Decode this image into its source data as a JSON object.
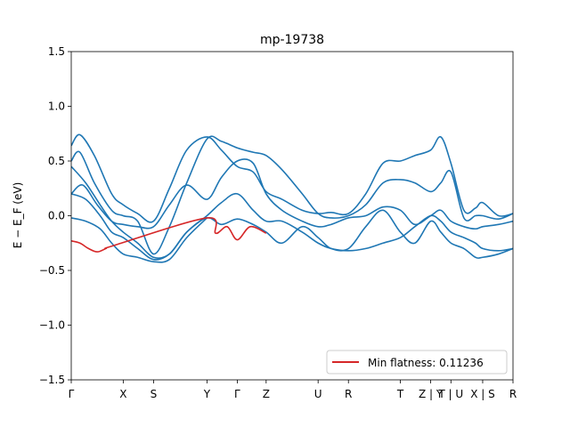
{
  "chart_data": {
    "type": "line",
    "title": "mp-19738",
    "ylabel": "E − E_F (eV)",
    "xlabel": "",
    "xlim": [
      0,
      15.3
    ],
    "ylim": [
      -1.5,
      1.5
    ],
    "yticks": [
      -1.5,
      -1.0,
      -0.5,
      0.0,
      0.5,
      1.0,
      1.5
    ],
    "ytick_labels": [
      "−1.5",
      "−1.0",
      "−0.5",
      "0.0",
      "0.5",
      "1.0",
      "1.5"
    ],
    "xticks": [
      {
        "x": 0.0,
        "label": "Γ"
      },
      {
        "x": 1.8,
        "label": "X"
      },
      {
        "x": 2.85,
        "label": "S"
      },
      {
        "x": 4.7,
        "label": "Y"
      },
      {
        "x": 5.75,
        "label": "Γ"
      },
      {
        "x": 6.75,
        "label": "Z"
      },
      {
        "x": 8.55,
        "label": "U"
      },
      {
        "x": 9.6,
        "label": "R"
      },
      {
        "x": 11.4,
        "label": "T"
      },
      {
        "x": 12.45,
        "label": "Z | Y"
      },
      {
        "x": 13.15,
        "label": "T | U"
      },
      {
        "x": 14.25,
        "label": "X | S"
      },
      {
        "x": 15.3,
        "label": "R"
      }
    ],
    "grid": false,
    "legend": {
      "location": "lower-right",
      "entries": [
        "Min flatness: 0.11236"
      ]
    },
    "series": [
      {
        "color": "#1f77b4",
        "x": [
          0,
          0.3,
          0.8,
          1.4,
          1.8,
          2.3,
          2.85,
          3.4,
          4.0,
          4.7,
          5.2,
          5.75,
          6.3,
          6.75,
          7.3,
          8.0,
          8.55,
          9.0,
          9.6,
          10.2,
          10.8,
          11.4,
          11.9,
          12.45,
          12.8,
          13.15,
          13.6,
          14.0,
          14.25,
          14.8,
          15.3
        ],
        "y": [
          0.64,
          0.74,
          0.55,
          0.2,
          0.1,
          0.02,
          -0.05,
          0.25,
          0.6,
          0.72,
          0.6,
          0.45,
          0.4,
          0.22,
          0.15,
          0.05,
          0.02,
          0.03,
          0.02,
          0.2,
          0.48,
          0.5,
          0.55,
          0.6,
          0.72,
          0.48,
          0.05,
          0.07,
          0.12,
          0.0,
          0.02
        ]
      },
      {
        "color": "#1f77b4",
        "x": [
          0,
          0.3,
          0.8,
          1.4,
          1.8,
          2.3,
          2.85,
          3.4,
          4.0,
          4.7,
          5.2,
          5.75,
          6.3,
          6.75,
          7.3,
          8.0,
          8.55,
          9.0,
          9.6,
          10.2,
          10.8,
          11.4,
          11.9,
          12.45,
          12.8,
          13.15,
          13.6,
          14.0,
          14.25,
          14.8,
          15.3
        ],
        "y": [
          0.5,
          0.58,
          0.3,
          0.05,
          0.0,
          -0.05,
          -0.35,
          -0.1,
          0.3,
          0.7,
          0.68,
          0.62,
          0.58,
          0.55,
          0.42,
          0.2,
          0.02,
          -0.02,
          0.0,
          0.1,
          0.3,
          0.33,
          0.3,
          0.22,
          0.3,
          0.4,
          -0.02,
          0.0,
          0.0,
          -0.03,
          0.02
        ]
      },
      {
        "color": "#1f77b4",
        "x": [
          0,
          0.4,
          0.9,
          1.4,
          1.8,
          2.3,
          2.85,
          3.4,
          4.0,
          4.7,
          5.2,
          5.75,
          6.3,
          6.75,
          7.3,
          8.0,
          8.55,
          9.0,
          9.6,
          10.2,
          10.8,
          11.4,
          11.9,
          12.45,
          12.8,
          13.15,
          13.6,
          14.0,
          14.25,
          14.8,
          15.3
        ],
        "y": [
          0.2,
          0.28,
          0.1,
          -0.05,
          -0.08,
          -0.1,
          -0.1,
          0.1,
          0.28,
          0.15,
          0.35,
          0.5,
          0.48,
          0.2,
          0.05,
          -0.05,
          -0.1,
          -0.08,
          -0.02,
          0.0,
          0.08,
          0.05,
          -0.08,
          0.0,
          0.05,
          -0.05,
          -0.1,
          -0.12,
          -0.1,
          -0.08,
          -0.05
        ]
      },
      {
        "color": "#1f77b4",
        "x": [
          0,
          0.5,
          1.0,
          1.4,
          1.8,
          2.3,
          2.85,
          3.4,
          4.0,
          4.7,
          5.2,
          5.75,
          6.3,
          6.75,
          7.3,
          8.0,
          8.55,
          9.0,
          9.6,
          10.2,
          10.8,
          11.4,
          11.9,
          12.45,
          12.8,
          13.15,
          13.6,
          14.0,
          14.25,
          14.8,
          15.3
        ],
        "y": [
          0.2,
          0.15,
          0.0,
          -0.15,
          -0.2,
          -0.3,
          -0.4,
          -0.35,
          -0.15,
          0.0,
          0.12,
          0.2,
          0.05,
          -0.05,
          -0.05,
          -0.15,
          -0.25,
          -0.3,
          -0.32,
          -0.3,
          -0.25,
          -0.2,
          -0.1,
          0.0,
          -0.05,
          -0.15,
          -0.2,
          -0.25,
          -0.3,
          -0.32,
          -0.3
        ]
      },
      {
        "color": "#1f77b4",
        "x": [
          0,
          0.5,
          1.0,
          1.4,
          1.8,
          2.3,
          2.85,
          3.4,
          4.0,
          4.7,
          5.2,
          5.75,
          6.3,
          6.75,
          7.3,
          8.0,
          8.55,
          9.0,
          9.6,
          10.2,
          10.8,
          11.4,
          11.9,
          12.45,
          12.8,
          13.15,
          13.6,
          14.0,
          14.25,
          14.8,
          15.3
        ],
        "y": [
          0.45,
          0.3,
          0.1,
          -0.05,
          -0.15,
          -0.25,
          -0.38,
          -0.35,
          -0.15,
          -0.02,
          -0.08,
          -0.03,
          -0.08,
          -0.15,
          -0.25,
          -0.1,
          -0.2,
          -0.3,
          -0.3,
          -0.1,
          0.05,
          -0.15,
          -0.25,
          -0.05,
          -0.15,
          -0.25,
          -0.3,
          -0.38,
          -0.38,
          -0.35,
          -0.3
        ]
      },
      {
        "color": "#1f77b4",
        "x": [
          0,
          0.5,
          1.0,
          1.4,
          1.8,
          2.3,
          2.85,
          3.4,
          4.0,
          4.7
        ],
        "y": [
          -0.02,
          -0.05,
          -0.12,
          -0.25,
          -0.35,
          -0.38,
          -0.42,
          -0.4,
          -0.2,
          -0.02
        ]
      },
      {
        "name": "Min flatness: 0.11236",
        "color": "#d62728",
        "x": [
          0,
          0.3,
          0.6,
          0.9,
          1.2,
          1.5,
          4.7,
          5.0,
          5.4,
          5.75,
          6.2,
          6.75
        ],
        "y": [
          -0.23,
          -0.25,
          -0.3,
          -0.33,
          -0.3,
          -0.27,
          -0.02,
          -0.16,
          -0.1,
          -0.22,
          -0.1,
          -0.16
        ]
      }
    ]
  }
}
